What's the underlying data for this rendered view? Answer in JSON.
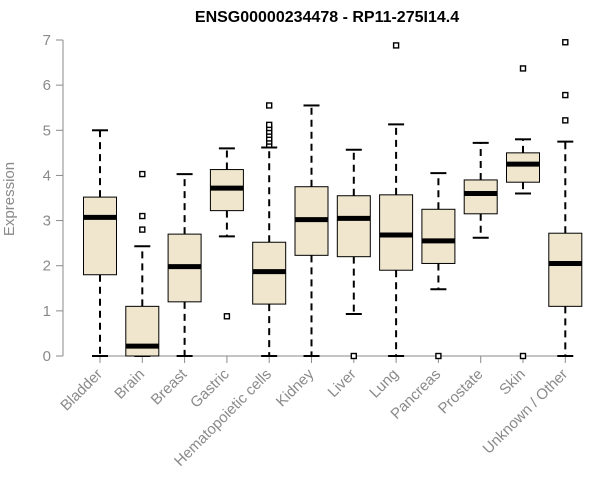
{
  "chart_data": {
    "type": "boxplot",
    "title": "ENSG00000234478 - RP11-275I14.4",
    "xlabel": "",
    "ylabel": "Expression",
    "ylim": [
      0,
      7
    ],
    "yticks": [
      0,
      1,
      2,
      3,
      4,
      5,
      6,
      7
    ],
    "grid": false,
    "legend": "none",
    "categories": [
      "Bladder",
      "Brain",
      "Breast",
      "Gastric",
      "Hematopoietic cells",
      "Kidney",
      "Liver",
      "Lung",
      "Pancreas",
      "Prostate",
      "Skin",
      "Unknown / Other"
    ],
    "boxes": [
      {
        "min": 0.0,
        "q1": 1.8,
        "median": 3.07,
        "q3": 3.52,
        "max": 5.0,
        "outliers": []
      },
      {
        "min": 0.0,
        "q1": 0.0,
        "median": 0.22,
        "q3": 1.1,
        "max": 2.43,
        "outliers": [
          2.8,
          3.1,
          4.03
        ]
      },
      {
        "min": 0.0,
        "q1": 1.2,
        "median": 1.98,
        "q3": 2.7,
        "max": 4.03,
        "outliers": []
      },
      {
        "min": 2.65,
        "q1": 3.22,
        "median": 3.72,
        "q3": 4.13,
        "max": 4.6,
        "outliers": [
          0.88
        ]
      },
      {
        "min": 0.0,
        "q1": 1.15,
        "median": 1.87,
        "q3": 2.52,
        "max": 4.62,
        "outliers": [
          4.68,
          4.75,
          4.82,
          4.9,
          4.97,
          5.05,
          5.12,
          5.55
        ]
      },
      {
        "min": 0.0,
        "q1": 2.23,
        "median": 3.02,
        "q3": 3.75,
        "max": 5.55,
        "outliers": []
      },
      {
        "min": 0.93,
        "q1": 2.2,
        "median": 3.05,
        "q3": 3.55,
        "max": 4.57,
        "outliers": [
          0.0
        ]
      },
      {
        "min": 0.0,
        "q1": 1.9,
        "median": 2.68,
        "q3": 3.57,
        "max": 5.13,
        "outliers": [
          6.88
        ]
      },
      {
        "min": 1.48,
        "q1": 2.05,
        "median": 2.55,
        "q3": 3.25,
        "max": 4.05,
        "outliers": [
          0.0
        ]
      },
      {
        "min": 2.62,
        "q1": 3.15,
        "median": 3.6,
        "q3": 3.9,
        "max": 4.72,
        "outliers": []
      },
      {
        "min": 3.6,
        "q1": 3.85,
        "median": 4.25,
        "q3": 4.5,
        "max": 4.8,
        "outliers": [
          0.0,
          6.37
        ]
      },
      {
        "min": 0.0,
        "q1": 1.1,
        "median": 2.05,
        "q3": 2.72,
        "max": 4.75,
        "outliers": [
          5.22,
          5.78,
          6.95
        ]
      }
    ],
    "colors": {
      "box_fill": "#efe6cd",
      "box_stroke": "#000000",
      "axis": "#8a8a8a",
      "text": "#8a8a8a",
      "title": "#000000"
    }
  }
}
